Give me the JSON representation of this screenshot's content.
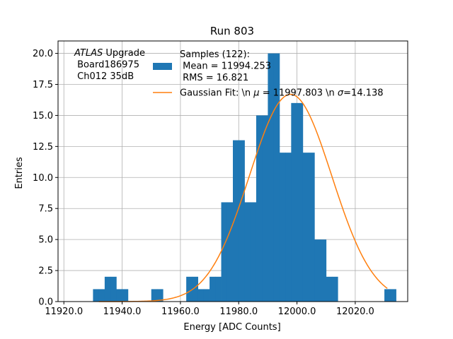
{
  "chart_data": {
    "type": "bar",
    "title": "Run 803",
    "xlabel": "Energy [ADC Counts]",
    "ylabel": "Entries",
    "xlim": [
      11918,
      12038
    ],
    "ylim": [
      0,
      21
    ],
    "xticks": [
      11920,
      11940,
      11960,
      11980,
      12000,
      12020
    ],
    "xtick_labels": [
      "11920.0",
      "11940.0",
      "11960.0",
      "11980.0",
      "12000.0",
      "12020.0"
    ],
    "yticks": [
      0,
      2.5,
      5,
      7.5,
      10,
      12.5,
      15,
      17.5,
      20
    ],
    "ytick_labels": [
      "0.0",
      "2.5",
      "5.0",
      "7.5",
      "10.0",
      "12.5",
      "15.0",
      "17.5",
      "20.0"
    ],
    "grid": true,
    "bin_width": 2,
    "bin_starts": [
      11930,
      11932,
      11934,
      11936,
      11938,
      11940,
      11942,
      11944,
      11946,
      11948,
      11950,
      11952,
      11954,
      11956,
      11958,
      11960,
      11962,
      11964,
      11966,
      11968,
      11970,
      11972,
      11974,
      11976,
      11978,
      11980,
      11982,
      11984,
      11986,
      11988,
      11990,
      11992,
      11994,
      11996,
      11998,
      12000,
      12002,
      12004,
      12006,
      12008,
      12010,
      12012,
      12014,
      12016,
      12018,
      12020,
      12022,
      12024,
      12026,
      12028,
      12030,
      12032
    ],
    "counts": [
      1,
      1,
      2,
      2,
      1,
      1,
      0,
      0,
      0,
      0,
      1,
      1,
      0,
      0,
      0,
      0,
      2,
      2,
      1,
      1,
      2,
      2,
      8,
      8,
      13,
      13,
      8,
      8,
      15,
      15,
      20,
      20,
      12,
      12,
      16,
      16,
      12,
      12,
      5,
      5,
      2,
      2,
      0,
      0,
      0,
      0,
      0,
      0,
      0,
      0,
      1,
      1
    ],
    "series": [
      {
        "name": "Samples (122):\n Mean = 11994.253\n RMS = 16.821",
        "kind": "histogram",
        "color": "#1f77b4",
        "bins": [
          {
            "x0": 11930,
            "x1": 11934,
            "count": 1
          },
          {
            "x0": 11934,
            "x1": 11938,
            "count": 2
          },
          {
            "x0": 11938,
            "x1": 11942,
            "count": 1
          },
          {
            "x0": 11942,
            "x1": 11946,
            "count": 0
          },
          {
            "x0": 11946,
            "x1": 11950,
            "count": 0
          },
          {
            "x0": 11950,
            "x1": 11954,
            "count": 1
          },
          {
            "x0": 11954,
            "x1": 11958,
            "count": 0
          },
          {
            "x0": 11958,
            "x1": 11962,
            "count": 0
          },
          {
            "x0": 11962,
            "x1": 11966,
            "count": 2
          },
          {
            "x0": 11966,
            "x1": 11970,
            "count": 1
          },
          {
            "x0": 11970,
            "x1": 11974,
            "count": 2
          },
          {
            "x0": 11974,
            "x1": 11978,
            "count": 8
          },
          {
            "x0": 11978,
            "x1": 11982,
            "count": 13
          },
          {
            "x0": 11982,
            "x1": 11986,
            "count": 8
          },
          {
            "x0": 11986,
            "x1": 11990,
            "count": 15
          },
          {
            "x0": 11990,
            "x1": 11994,
            "count": 20
          },
          {
            "x0": 11994,
            "x1": 11998,
            "count": 12
          },
          {
            "x0": 11998,
            "x1": 12002,
            "count": 16
          },
          {
            "x0": 12002,
            "x1": 12006,
            "count": 12
          },
          {
            "x0": 12006,
            "x1": 12010,
            "count": 5
          },
          {
            "x0": 12010,
            "x1": 12014,
            "count": 2
          },
          {
            "x0": 12014,
            "x1": 12018,
            "count": 0
          },
          {
            "x0": 12018,
            "x1": 12022,
            "count": 0
          },
          {
            "x0": 12022,
            "x1": 12026,
            "count": 0
          },
          {
            "x0": 12026,
            "x1": 12030,
            "count": 0
          },
          {
            "x0": 12030,
            "x1": 12034,
            "count": 1
          }
        ]
      },
      {
        "name": "Gaussian Fit: \\n $\\mu$ = 11997.803 \\n $\\sigma$=14.138",
        "kind": "line",
        "color": "#ff7f0e",
        "mu": 11997.803,
        "sigma": 14.138,
        "amplitude": 16.7,
        "x_range": [
          11932,
          12031
        ]
      }
    ],
    "legend": {
      "placement": "top-right",
      "entries": [
        {
          "lines": [
            "Samples (122):",
            " Mean = 11994.253",
            " RMS = 16.821"
          ],
          "color": "#1f77b4",
          "marker": "patch"
        },
        {
          "lines_rich": [
            {
              "text": "Gaussian Fit: \\n "
            },
            {
              "text": "μ",
              "italic": true
            },
            {
              "text": " = 11997.803 \\n "
            },
            {
              "text": "σ",
              "italic": true
            },
            {
              "text": "=14.138"
            }
          ],
          "color": "#ff7f0e",
          "marker": "line"
        }
      ]
    },
    "annotation": {
      "placement": "top-left",
      "lines": [
        [
          {
            "text": "ATLAS",
            "italic": true
          },
          {
            "text": " Upgrade"
          }
        ],
        [
          {
            "text": " Board186975"
          }
        ],
        [
          {
            "text": " Ch012 35dB"
          }
        ]
      ]
    }
  }
}
